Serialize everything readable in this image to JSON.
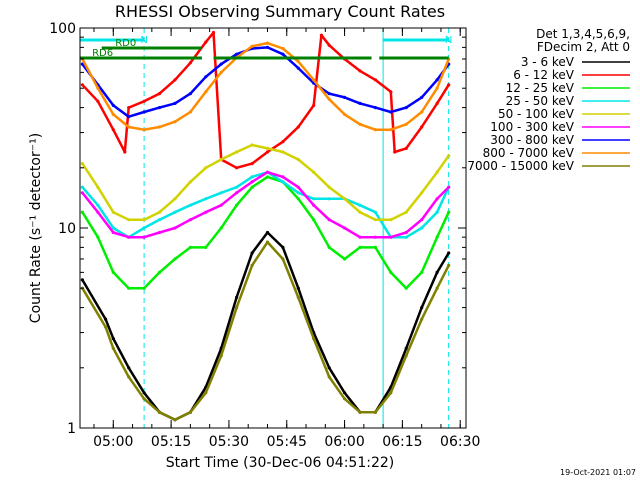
{
  "chart_data": {
    "type": "line",
    "title": "RHESSI Observing Summary Count Rates",
    "xlabel": "Start Time (30-Dec-06 04:51:22)",
    "ylabel": "Count Rate (s⁻¹ detector⁻¹)",
    "x_ticks": [
      "05:00",
      "05:15",
      "05:30",
      "05:45",
      "06:00",
      "06:15",
      "06:30"
    ],
    "y_ticks": [
      "1",
      "10",
      "100"
    ],
    "y_scale": "log",
    "ylim": [
      1,
      100
    ],
    "xlim": [
      "04:51:22",
      "06:31:30"
    ],
    "grid": false,
    "legend_header": [
      "Det 1,3,4,5,6,9,",
      "FDecim 2, Att 0"
    ],
    "legend_position": "right",
    "timestamp": "19-Oct-2021 01:07",
    "annotations": [
      {
        "label": "N",
        "color": "#00e5e5",
        "from": "04:51",
        "to": "05:08"
      },
      {
        "label": "N",
        "color": "#00e5e5",
        "from": "06:10",
        "to": "06:27"
      },
      {
        "label": "RD0",
        "color": "#008000",
        "from": "04:57",
        "to": "05:23"
      },
      {
        "label": "RD6",
        "color": "#008000",
        "from": "04:51",
        "to": "05:23"
      },
      {
        "label": "",
        "color": "#008000",
        "from": "05:26",
        "to": "06:07"
      },
      {
        "label": "",
        "color": "#008000",
        "from": "06:09",
        "to": "06:27"
      }
    ],
    "vlines": [
      {
        "time": "04:51:22",
        "color": "#00e5e5",
        "style": "solid"
      },
      {
        "time": "05:08",
        "color": "#00e5e5",
        "style": "dashed"
      },
      {
        "time": "06:10",
        "color": "#00e5e5",
        "style": "solid"
      },
      {
        "time": "06:27",
        "color": "#00e5e5",
        "style": "dashed"
      }
    ],
    "series": [
      {
        "name": "3 - 6 keV",
        "color": "#000000",
        "x": [
          "04:52",
          "04:58",
          "05:00",
          "05:04",
          "05:08",
          "05:12",
          "05:16",
          "05:20",
          "05:24",
          "05:28",
          "05:32",
          "05:36",
          "05:40",
          "05:44",
          "05:48",
          "05:52",
          "05:56",
          "06:00",
          "06:04",
          "06:08",
          "06:12",
          "06:16",
          "06:20",
          "06:24",
          "06:27"
        ],
        "y": [
          5.5,
          3.5,
          2.8,
          2.0,
          1.5,
          1.2,
          1.1,
          1.2,
          1.6,
          2.5,
          4.5,
          7.5,
          9.5,
          8.0,
          5.0,
          3.0,
          2.0,
          1.5,
          1.2,
          1.2,
          1.6,
          2.5,
          4.0,
          6.0,
          7.5
        ]
      },
      {
        "name": "6 - 12 keV",
        "color": "#ff0000",
        "x": [
          "04:52",
          "04:56",
          "05:00",
          "05:03",
          "05:04",
          "05:08",
          "05:12",
          "05:16",
          "05:20",
          "05:24",
          "05:26",
          "05:28",
          "05:32",
          "05:36",
          "05:40",
          "05:44",
          "05:48",
          "05:52",
          "05:54",
          "05:56",
          "06:00",
          "06:04",
          "06:08",
          "06:12",
          "06:13",
          "06:16",
          "06:20",
          "06:24",
          "06:27"
        ],
        "y": [
          52,
          43,
          31,
          24,
          40,
          43,
          47,
          55,
          67,
          85,
          95,
          22,
          20,
          21,
          24,
          27,
          32,
          41,
          92,
          82,
          70,
          61,
          55,
          48,
          24,
          25,
          32,
          42,
          52
        ]
      },
      {
        "name": "12 - 25 keV",
        "color": "#00ee00",
        "x": [
          "04:52",
          "04:56",
          "05:00",
          "05:04",
          "05:08",
          "05:12",
          "05:16",
          "05:20",
          "05:24",
          "05:28",
          "05:32",
          "05:36",
          "05:40",
          "05:44",
          "05:48",
          "05:52",
          "05:56",
          "06:00",
          "06:04",
          "06:08",
          "06:12",
          "06:16",
          "06:20",
          "06:24",
          "06:27"
        ],
        "y": [
          12,
          9,
          6,
          5,
          5,
          6,
          7,
          8,
          8,
          10,
          13,
          16,
          18,
          17,
          14,
          11,
          8,
          7,
          8,
          8,
          6,
          5,
          6,
          9,
          12
        ]
      },
      {
        "name": "25 - 50 keV",
        "color": "#00e5e5",
        "x": [
          "04:52",
          "04:56",
          "05:00",
          "05:04",
          "05:08",
          "05:12",
          "05:16",
          "05:20",
          "05:24",
          "05:28",
          "05:32",
          "05:36",
          "05:40",
          "05:44",
          "05:48",
          "05:52",
          "05:56",
          "06:00",
          "06:04",
          "06:08",
          "06:12",
          "06:16",
          "06:20",
          "06:24",
          "06:27"
        ],
        "y": [
          16,
          13,
          10,
          9,
          10,
          11,
          12,
          13,
          14,
          15,
          16,
          18,
          19,
          17,
          15,
          14,
          14,
          14,
          13,
          12,
          9,
          9,
          10,
          12,
          16
        ]
      },
      {
        "name": "50 - 100 keV",
        "color": "#d2d200",
        "x": [
          "04:52",
          "04:56",
          "05:00",
          "05:04",
          "05:08",
          "05:12",
          "05:16",
          "05:20",
          "05:24",
          "05:28",
          "05:32",
          "05:36",
          "05:40",
          "05:44",
          "05:48",
          "05:52",
          "05:56",
          "06:00",
          "06:04",
          "06:08",
          "06:12",
          "06:16",
          "06:20",
          "06:24",
          "06:27"
        ],
        "y": [
          21,
          16,
          12,
          11,
          11,
          12,
          14,
          17,
          20,
          22,
          24,
          26,
          25,
          24,
          22,
          19,
          16,
          14,
          12,
          11,
          11,
          12,
          15,
          19,
          23
        ]
      },
      {
        "name": "100 - 300 keV",
        "color": "#ff00ff",
        "x": [
          "04:52",
          "04:56",
          "05:00",
          "05:04",
          "05:08",
          "05:12",
          "05:16",
          "05:20",
          "05:24",
          "05:28",
          "05:32",
          "05:36",
          "05:40",
          "05:44",
          "05:48",
          "05:52",
          "05:56",
          "06:00",
          "06:04",
          "06:08",
          "06:12",
          "06:16",
          "06:20",
          "06:24",
          "06:27"
        ],
        "y": [
          15,
          12,
          9.5,
          9,
          9,
          9.5,
          10,
          11,
          12,
          13,
          15,
          17,
          19,
          18,
          16,
          13,
          11,
          10,
          9,
          9,
          9,
          9.5,
          11,
          14,
          16
        ]
      },
      {
        "name": "300 - 800 keV",
        "color": "#0000ff",
        "x": [
          "04:52",
          "04:56",
          "05:00",
          "05:04",
          "05:08",
          "05:12",
          "05:16",
          "05:20",
          "05:24",
          "05:28",
          "05:32",
          "05:36",
          "05:40",
          "05:44",
          "05:48",
          "05:52",
          "05:56",
          "06:00",
          "06:04",
          "06:08",
          "06:12",
          "06:16",
          "06:20",
          "06:24",
          "06:27"
        ],
        "y": [
          66,
          52,
          41,
          36,
          38,
          40,
          42,
          47,
          57,
          66,
          74,
          79,
          80,
          74,
          63,
          53,
          47,
          45,
          42,
          40,
          38,
          40,
          45,
          55,
          66
        ]
      },
      {
        "name": "800 - 7000 keV",
        "color": "#ff8c00",
        "x": [
          "04:52",
          "04:56",
          "05:00",
          "05:04",
          "05:08",
          "05:12",
          "05:16",
          "05:20",
          "05:24",
          "05:28",
          "05:32",
          "05:36",
          "05:40",
          "05:44",
          "05:48",
          "05:52",
          "05:56",
          "06:00",
          "06:04",
          "06:08",
          "06:12",
          "06:16",
          "06:20",
          "06:24",
          "06:27"
        ],
        "y": [
          70,
          50,
          37,
          32,
          31,
          32,
          34,
          38,
          48,
          60,
          71,
          81,
          84,
          79,
          68,
          55,
          44,
          37,
          33,
          31,
          31,
          33,
          38,
          50,
          70
        ]
      },
      {
        "name": "7000 - 15000 keV",
        "color": "#808000",
        "x": [
          "04:52",
          "04:58",
          "05:00",
          "05:04",
          "05:08",
          "05:12",
          "05:16",
          "05:20",
          "05:24",
          "05:28",
          "05:32",
          "05:36",
          "05:40",
          "05:44",
          "05:48",
          "05:52",
          "05:56",
          "06:00",
          "06:04",
          "06:08",
          "06:12",
          "06:16",
          "06:20",
          "06:24",
          "06:27"
        ],
        "y": [
          5.0,
          3.2,
          2.5,
          1.8,
          1.4,
          1.2,
          1.1,
          1.2,
          1.5,
          2.3,
          4.0,
          6.5,
          8.5,
          7.0,
          4.5,
          2.8,
          1.8,
          1.4,
          1.2,
          1.2,
          1.5,
          2.3,
          3.5,
          5.0,
          6.5
        ]
      }
    ]
  }
}
